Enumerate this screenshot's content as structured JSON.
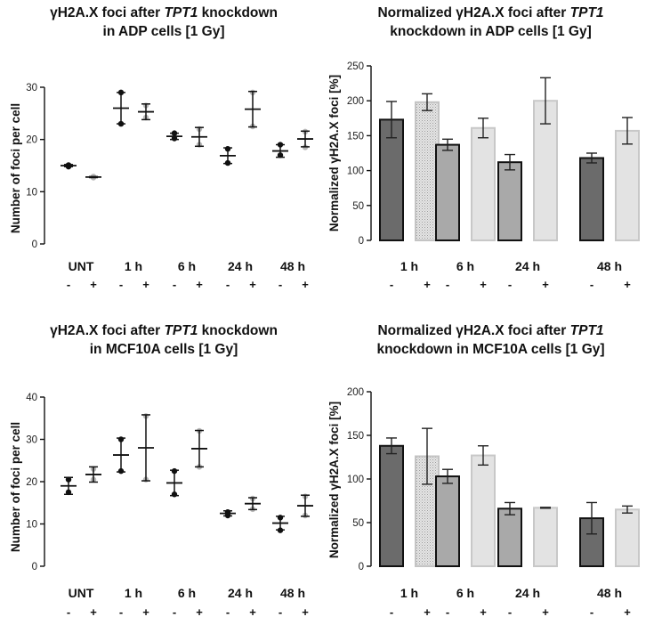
{
  "colors": {
    "bar_dark": "#6b6b6b",
    "bar_medium": "#a9a9a9",
    "bar_light": "#e3e3e3",
    "bar_hatched": "#d2d2d2",
    "point_untreated": "#111111",
    "point_treated": "#b8b8b8",
    "axis": "#111111"
  },
  "chart_data": [
    {
      "id": "adp_foci",
      "type": "scatter",
      "title": {
        "pre": "γH2A.X foci after ",
        "italic": "TPT1",
        "post": " knockdown",
        "line2": "in ADP cells [1 Gy]"
      },
      "ylabel": "Number of foci per cell",
      "ylim": [
        0,
        30
      ],
      "yticks": [
        0,
        10,
        20,
        30
      ],
      "groups": [
        "UNT",
        "1  h",
        "6 h",
        "24 h",
        "48 h"
      ],
      "sublabels": [
        "-",
        "+"
      ],
      "points": [
        {
          "group": "UNT",
          "knockdown": "-",
          "values": [
            14.8,
            15.1
          ],
          "mean": 15.0,
          "err": 0.2
        },
        {
          "group": "UNT",
          "knockdown": "+",
          "values": [
            12.7,
            12.9
          ],
          "mean": 12.8,
          "err": 0.1
        },
        {
          "group": "1  h",
          "knockdown": "-",
          "values": [
            29,
            23
          ],
          "mean": 26.0,
          "err": 3.0
        },
        {
          "group": "1  h",
          "knockdown": "+",
          "values": [
            26.5,
            24.2
          ],
          "mean": 25.3,
          "err": 1.5
        },
        {
          "group": "6 h",
          "knockdown": "-",
          "values": [
            21.2,
            20.2
          ],
          "mean": 20.6,
          "err": 0.6
        },
        {
          "group": "6 h",
          "knockdown": "+",
          "values": [
            22.0,
            19.0
          ],
          "mean": 20.5,
          "err": 1.8
        },
        {
          "group": "24 h",
          "knockdown": "-",
          "values": [
            18.2,
            15.5
          ],
          "mean": 16.9,
          "err": 1.5
        },
        {
          "group": "24 h",
          "knockdown": "+",
          "values": [
            29.0,
            22.5
          ],
          "mean": 25.8,
          "err": 3.4
        },
        {
          "group": "48 h",
          "knockdown": "-",
          "values": [
            19.0,
            17.0
          ],
          "mean": 17.8,
          "err": 1.2
        },
        {
          "group": "48 h",
          "knockdown": "+",
          "values": [
            21.5,
            18.5
          ],
          "mean": 20.1,
          "err": 1.5
        }
      ]
    },
    {
      "id": "adp_norm",
      "type": "bar",
      "title": {
        "pre": "Normalized γH2A.X foci after ",
        "italic": "TPT1",
        "post": "",
        "line2": "knockdown in ADP cells [1 Gy]"
      },
      "ylabel": "Normalized γH2A.X foci [%]",
      "ylim": [
        0,
        250
      ],
      "yticks": [
        0,
        50,
        100,
        150,
        200,
        250
      ],
      "groups": [
        "1  h",
        "6 h",
        "24 h",
        "48 h"
      ],
      "sublabels": [
        "-",
        "+"
      ],
      "bars": [
        {
          "group": "1  h",
          "knockdown": "-",
          "value": 173,
          "err": 26,
          "shade": "dark"
        },
        {
          "group": "1  h",
          "knockdown": "+",
          "value": 198,
          "err": 12,
          "shade": "hatched"
        },
        {
          "group": "6 h",
          "knockdown": "-",
          "value": 137,
          "err": 8,
          "shade": "medium"
        },
        {
          "group": "6 h",
          "knockdown": "+",
          "value": 161,
          "err": 14,
          "shade": "light"
        },
        {
          "group": "24 h",
          "knockdown": "-",
          "value": 112,
          "err": 11,
          "shade": "medium"
        },
        {
          "group": "24 h",
          "knockdown": "+",
          "value": 200,
          "err": 33,
          "shade": "light"
        },
        {
          "group": "48 h",
          "knockdown": "-",
          "value": 118,
          "err": 7,
          "shade": "dark"
        },
        {
          "group": "48 h",
          "knockdown": "+",
          "value": 157,
          "err": 19,
          "shade": "light"
        }
      ]
    },
    {
      "id": "mcf_foci",
      "type": "scatter",
      "title": {
        "pre": "γH2A.X foci after ",
        "italic": "TPT1",
        "post": " knockdown",
        "line2": "in MCF10A cells [1 Gy]"
      },
      "ylabel": "Number of foci per cell",
      "ylim": [
        0,
        40
      ],
      "yticks": [
        0,
        10,
        20,
        30,
        40
      ],
      "groups": [
        "UNT",
        "1  h",
        "6 h",
        "24 h",
        "48 h"
      ],
      "sublabels": [
        "-",
        "+"
      ],
      "points": [
        {
          "group": "UNT",
          "knockdown": "-",
          "values": [
            20.5,
            17.5
          ],
          "mean": 19.0,
          "err": 2.0
        },
        {
          "group": "UNT",
          "knockdown": "+",
          "values": [
            23.0,
            20.5
          ],
          "mean": 21.7,
          "err": 1.8
        },
        {
          "group": "1  h",
          "knockdown": "-",
          "values": [
            30.0,
            22.5
          ],
          "mean": 26.3,
          "err": 4.0
        },
        {
          "group": "1  h",
          "knockdown": "+",
          "values": [
            35.5,
            20.5
          ],
          "mean": 28.0,
          "err": 7.8
        },
        {
          "group": "6 h",
          "knockdown": "-",
          "values": [
            22.5,
            17.0
          ],
          "mean": 19.7,
          "err": 3.0
        },
        {
          "group": "6 h",
          "knockdown": "+",
          "values": [
            32.0,
            23.5
          ],
          "mean": 27.8,
          "err": 4.3
        },
        {
          "group": "24 h",
          "knockdown": "-",
          "values": [
            12.8,
            12.0
          ],
          "mean": 12.5,
          "err": 0.6
        },
        {
          "group": "24 h",
          "knockdown": "+",
          "values": [
            16.0,
            13.5
          ],
          "mean": 14.8,
          "err": 1.4
        },
        {
          "group": "48 h",
          "knockdown": "-",
          "values": [
            11.5,
            8.5
          ],
          "mean": 10.2,
          "err": 1.6
        },
        {
          "group": "48 h",
          "knockdown": "+",
          "values": [
            16.5,
            12.0
          ],
          "mean": 14.3,
          "err": 2.5
        }
      ]
    },
    {
      "id": "mcf_norm",
      "type": "bar",
      "title": {
        "pre": "Normalized γH2A.X foci after ",
        "italic": "TPT1",
        "post": "",
        "line2": "knockdown in MCF10A cells [1 Gy]"
      },
      "ylabel": "Normalized γH2A.X foci [%]",
      "ylim": [
        0,
        200
      ],
      "yticks": [
        0,
        50,
        100,
        150,
        200
      ],
      "groups": [
        "1  h",
        "6 h",
        "24 h",
        "48 h"
      ],
      "sublabels": [
        "-",
        "+"
      ],
      "bars": [
        {
          "group": "1  h",
          "knockdown": "-",
          "value": 138,
          "err": 9,
          "shade": "dark"
        },
        {
          "group": "1  h",
          "knockdown": "+",
          "value": 126,
          "err": 32,
          "shade": "hatched"
        },
        {
          "group": "6 h",
          "knockdown": "-",
          "value": 103,
          "err": 8,
          "shade": "medium"
        },
        {
          "group": "6 h",
          "knockdown": "+",
          "value": 127,
          "err": 11,
          "shade": "light"
        },
        {
          "group": "24 h",
          "knockdown": "-",
          "value": 66,
          "err": 7,
          "shade": "medium"
        },
        {
          "group": "24 h",
          "knockdown": "+",
          "value": 67,
          "err": 0.5,
          "shade": "light"
        },
        {
          "group": "48 h",
          "knockdown": "-",
          "value": 55,
          "err": 18,
          "shade": "dark"
        },
        {
          "group": "48 h",
          "knockdown": "+",
          "value": 65,
          "err": 4,
          "shade": "light"
        }
      ]
    }
  ]
}
